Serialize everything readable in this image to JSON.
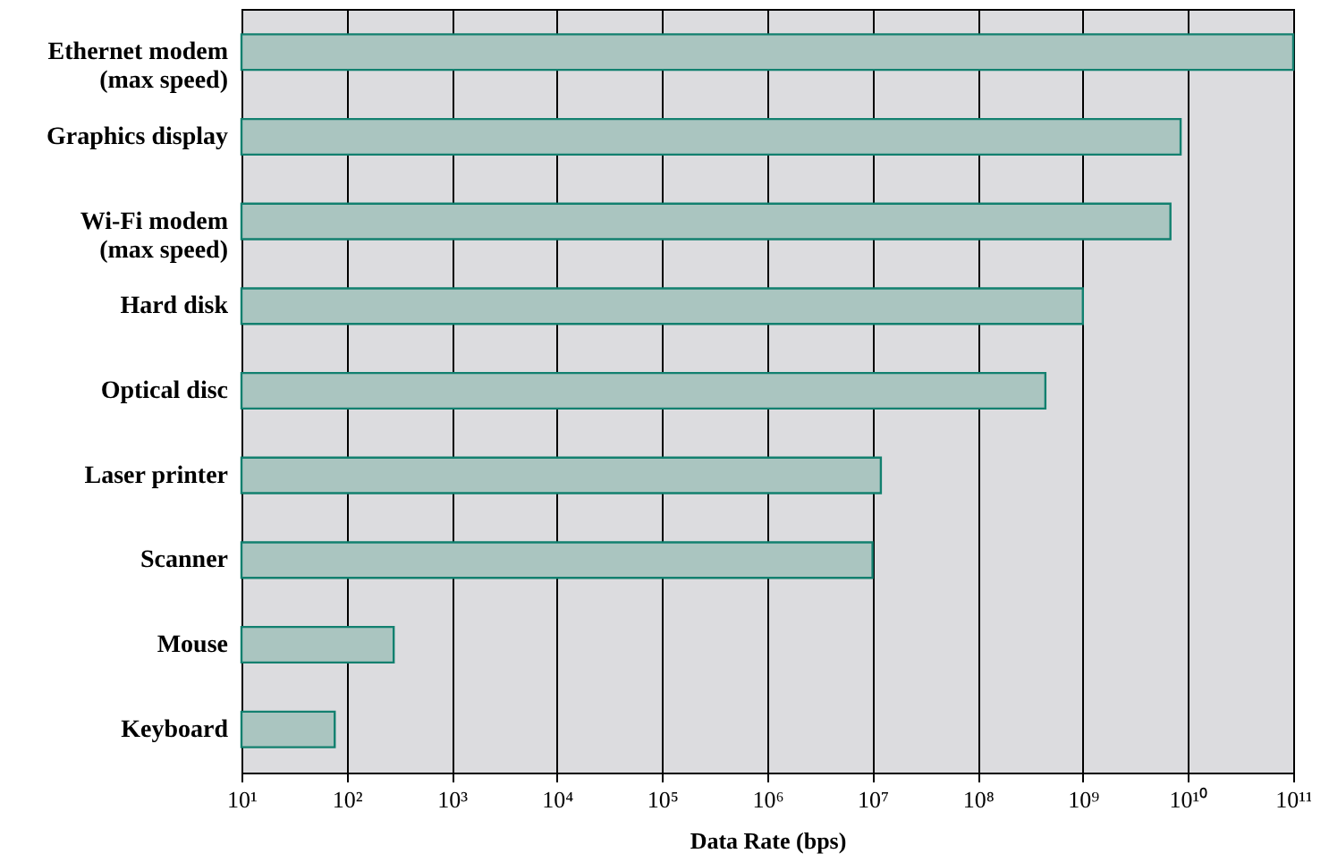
{
  "chart_data": {
    "type": "bar",
    "orientation": "horizontal",
    "xlabel": "Data Rate (bps)",
    "categories": [
      "Ethernet modem\n(max speed)",
      "Graphics display",
      "Wi-Fi modem\n(max speed)",
      "Hard disk",
      "Optical disc",
      "Laser printer",
      "Scanner",
      "Mouse",
      "Keyboard"
    ],
    "values": [
      100000000000,
      8500000000,
      6800000000,
      1000000000,
      440000000,
      12000000,
      10000000,
      280,
      77
    ],
    "color": "#aac5c0",
    "log": "x",
    "grid": "x",
    "xlim": [
      10,
      100000000000
    ],
    "xticks": [
      {
        "value": 10,
        "label": "10¹"
      },
      {
        "value": 100,
        "label": "10²"
      },
      {
        "value": 1000,
        "label": "10³"
      },
      {
        "value": 10000,
        "label": "10⁴"
      },
      {
        "value": 100000,
        "label": "10⁵"
      },
      {
        "value": 1000000,
        "label": "10⁶"
      },
      {
        "value": 10000000,
        "label": "10⁷"
      },
      {
        "value": 100000000,
        "label": "10⁸"
      },
      {
        "value": 1000000000,
        "label": "10⁹"
      },
      {
        "value": 10000000000,
        "label": "10¹⁰"
      },
      {
        "value": 100000000000,
        "label": "10¹¹"
      }
    ]
  }
}
